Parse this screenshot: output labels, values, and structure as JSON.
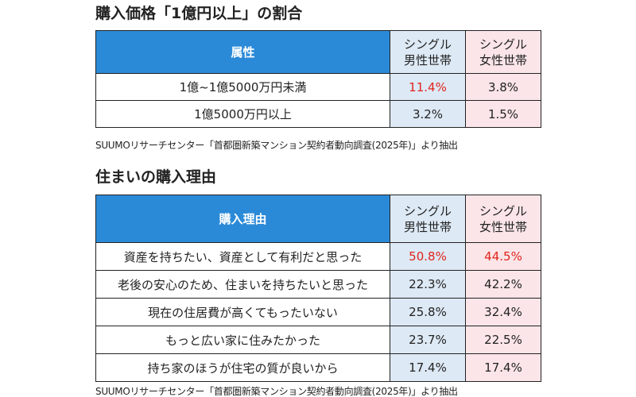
{
  "sections": [
    {
      "title": "購入価格「1億円以上」の割合",
      "header": {
        "label": "属性",
        "male": [
          "シングル",
          "男性世帯"
        ],
        "female": [
          "シングル",
          "女性世帯"
        ]
      },
      "rows": [
        {
          "label": "1億~1億5000万円未満",
          "male": "11.4%",
          "female": "3.8%",
          "highlight": [
            true,
            false
          ]
        },
        {
          "label": "1億5000万円以上",
          "male": "3.2%",
          "female": "1.5%",
          "highlight": [
            false,
            false
          ]
        }
      ],
      "source": "SUUMOリサーチセンター「首都圏新築マンション契約者動向調査(2025年)」より抽出"
    },
    {
      "title": "住まいの購入理由",
      "header": {
        "label": "購入理由",
        "male": [
          "シングル",
          "男性世帯"
        ],
        "female": [
          "シングル",
          "女性世帯"
        ]
      },
      "rows": [
        {
          "label": "資産を持ちたい、資産として有利だと思った",
          "male": "50.8%",
          "female": "44.5%",
          "highlight": [
            true,
            true
          ]
        },
        {
          "label": "老後の安心のため、住まいを持ちたいと思った",
          "male": "22.3%",
          "female": "42.2%",
          "highlight": [
            false,
            false
          ]
        },
        {
          "label": "現在の住居費が高くてもったいない",
          "male": "25.8%",
          "female": "32.4%",
          "highlight": [
            false,
            false
          ]
        },
        {
          "label": "もっと広い家に住みたかった",
          "male": "23.7%",
          "female": "22.5%",
          "highlight": [
            false,
            false
          ]
        },
        {
          "label": "持ち家のほうが住宅の質が良いから",
          "male": "17.4%",
          "female": "17.4%",
          "highlight": [
            false,
            false
          ]
        }
      ],
      "source": "SUUMOリサーチセンター「首都圏新築マンション契約者動向調査(2025年)」より抽出"
    }
  ]
}
